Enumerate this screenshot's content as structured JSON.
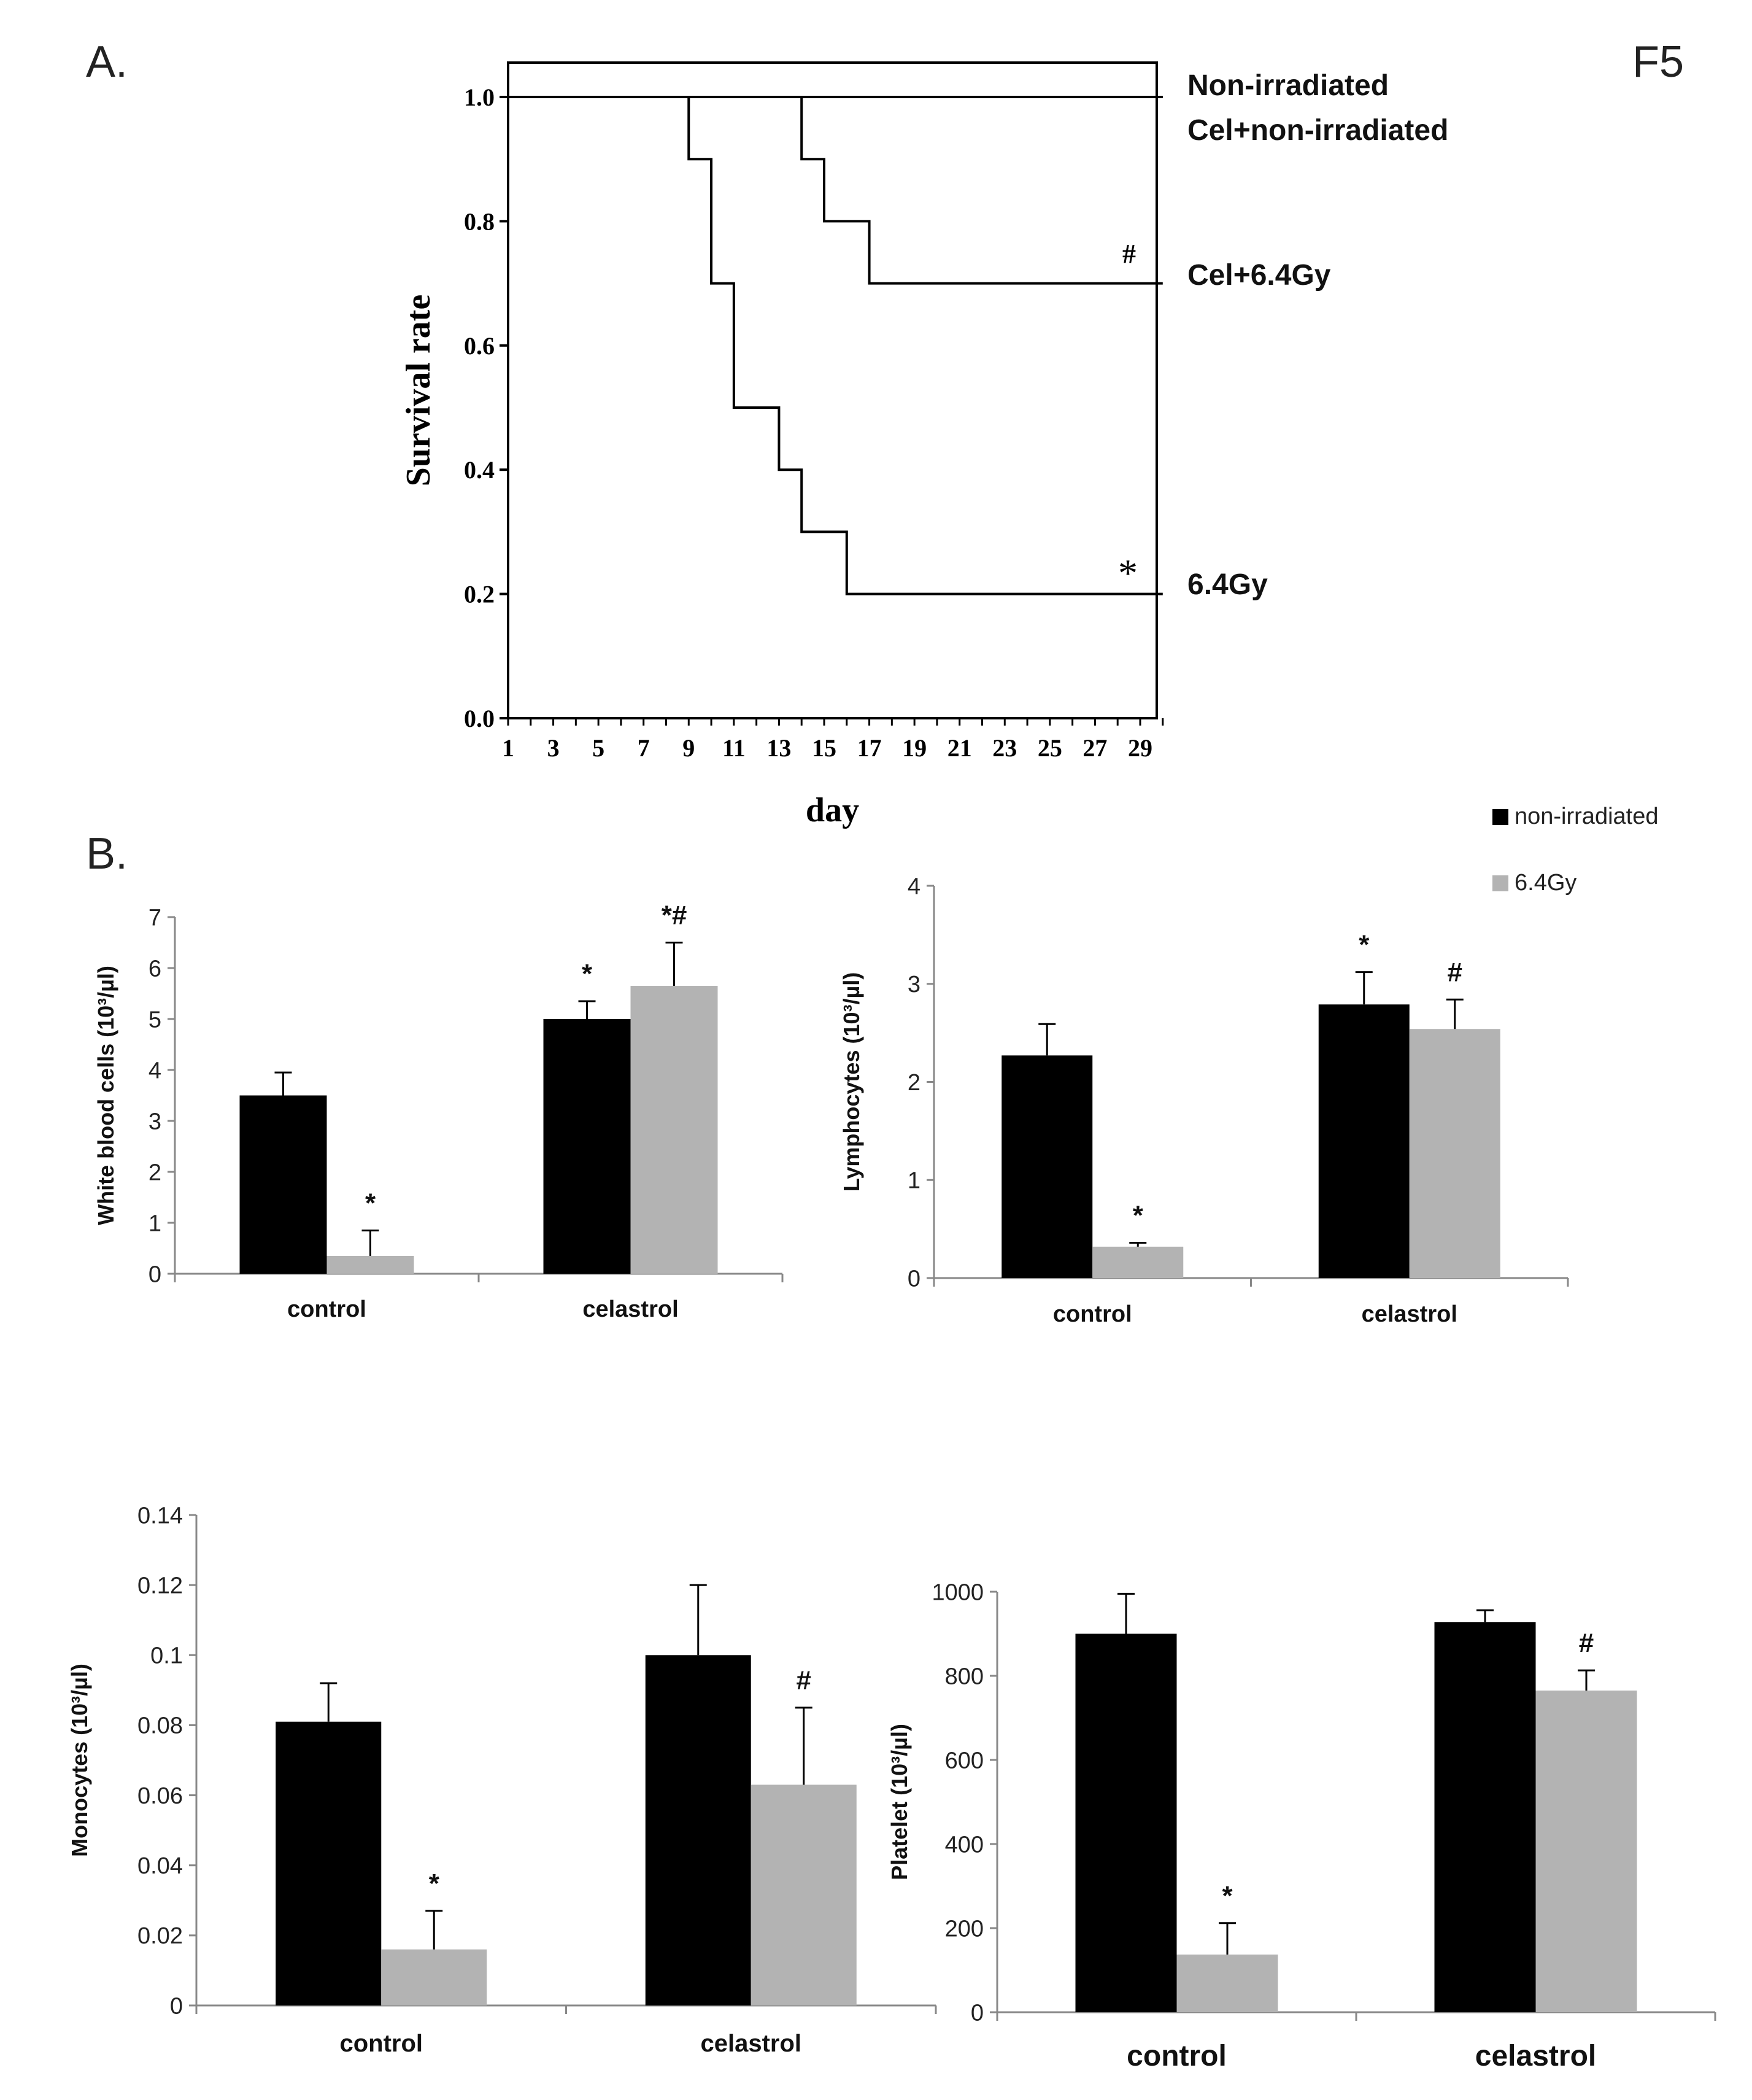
{
  "figure_label": "F5",
  "panel_a": {
    "label": "A."
  },
  "panel_b": {
    "label": "B."
  },
  "legend": [
    {
      "name": "non-irradiated",
      "color": "#000000"
    },
    {
      "name": "6.4Gy",
      "color": "#b3b3b3"
    }
  ],
  "chart_data": [
    {
      "type": "line",
      "subtype": "survival-step",
      "ylabel": "Survival rate",
      "xlabel": "day",
      "xlim": [
        1,
        30
      ],
      "ylim": [
        0.0,
        1.05
      ],
      "x_ticks": [
        "1",
        "3",
        "5",
        "7",
        "9",
        "11",
        "13",
        "15",
        "17",
        "19",
        "21",
        "23",
        "25",
        "27",
        "29"
      ],
      "y_ticks": [
        "0.0",
        "0.2",
        "0.4",
        "0.6",
        "0.8",
        "1.0"
      ],
      "series": [
        {
          "name": "Non-irradiated",
          "points": [
            [
              1,
              1.0
            ],
            [
              30,
              1.0
            ]
          ]
        },
        {
          "name": "Cel+non-irradiated",
          "points": [
            [
              1,
              1.0
            ],
            [
              30,
              1.0
            ]
          ]
        },
        {
          "name": "Cel+6.4Gy",
          "marker": "#",
          "points": [
            [
              1,
              1.0
            ],
            [
              14,
              1.0
            ],
            [
              14,
              0.9
            ],
            [
              15,
              0.9
            ],
            [
              15,
              0.8
            ],
            [
              17,
              0.8
            ],
            [
              17,
              0.7
            ],
            [
              30,
              0.7
            ]
          ]
        },
        {
          "name": "6.4Gy",
          "marker": "*",
          "points": [
            [
              1,
              1.0
            ],
            [
              9,
              1.0
            ],
            [
              9,
              0.9
            ],
            [
              10,
              0.9
            ],
            [
              10,
              0.7
            ],
            [
              11,
              0.7
            ],
            [
              11,
              0.5
            ],
            [
              13,
              0.5
            ],
            [
              13,
              0.4
            ],
            [
              14,
              0.4
            ],
            [
              14,
              0.3
            ],
            [
              16,
              0.3
            ],
            [
              16,
              0.2
            ],
            [
              30,
              0.2
            ]
          ]
        }
      ]
    },
    {
      "type": "bar",
      "ylabel": "White blood cells (10³/µl)",
      "categories": [
        "control",
        "celastrol"
      ],
      "ylim": [
        0,
        7
      ],
      "y_ticks": [
        "0",
        "1",
        "2",
        "3",
        "4",
        "5",
        "6",
        "7"
      ],
      "series": [
        {
          "name": "non-irradiated",
          "values": [
            3.5,
            5.0
          ],
          "errors": [
            0.45,
            0.35
          ],
          "markers": [
            "",
            "*"
          ]
        },
        {
          "name": "6.4Gy",
          "values": [
            0.35,
            5.65
          ],
          "errors": [
            0.5,
            0.85
          ],
          "markers": [
            "*",
            "*#"
          ]
        }
      ]
    },
    {
      "type": "bar",
      "ylabel": "Lymphocytes (10³/µl)",
      "categories": [
        "control",
        "celastrol"
      ],
      "ylim": [
        0,
        4
      ],
      "y_ticks": [
        "0",
        "1",
        "2",
        "3",
        "4"
      ],
      "series": [
        {
          "name": "non-irradiated",
          "values": [
            2.27,
            2.79
          ],
          "errors": [
            0.32,
            0.33
          ],
          "markers": [
            "",
            "*"
          ]
        },
        {
          "name": "6.4Gy",
          "values": [
            0.32,
            2.54
          ],
          "errors": [
            0.04,
            0.3
          ],
          "markers": [
            "*",
            "#"
          ]
        }
      ]
    },
    {
      "type": "bar",
      "ylabel": "Monocytes (10³/µl)",
      "categories": [
        "control",
        "celastrol"
      ],
      "ylim": [
        0,
        0.14
      ],
      "y_ticks": [
        "0",
        "0.02",
        "0.04",
        "0.06",
        "0.08",
        "0.1",
        "0.12",
        "0.14"
      ],
      "series": [
        {
          "name": "non-irradiated",
          "values": [
            0.081,
            0.1
          ],
          "errors": [
            0.011,
            0.02
          ],
          "markers": [
            "",
            ""
          ]
        },
        {
          "name": "6.4Gy",
          "values": [
            0.016,
            0.063
          ],
          "errors": [
            0.011,
            0.022
          ],
          "markers": [
            "*",
            "#"
          ]
        }
      ]
    },
    {
      "type": "bar",
      "ylabel": "Platelet (10³/µl)",
      "categories": [
        "control",
        "celastrol"
      ],
      "ylim": [
        0,
        1000
      ],
      "y_ticks": [
        "0",
        "200",
        "400",
        "600",
        "800",
        "1000"
      ],
      "series": [
        {
          "name": "non-irradiated",
          "values": [
            900,
            928
          ],
          "errors": [
            95,
            28
          ],
          "markers": [
            "",
            ""
          ]
        },
        {
          "name": "6.4Gy",
          "values": [
            137,
            765
          ],
          "errors": [
            75,
            48
          ],
          "markers": [
            "*",
            "#"
          ]
        }
      ]
    }
  ]
}
